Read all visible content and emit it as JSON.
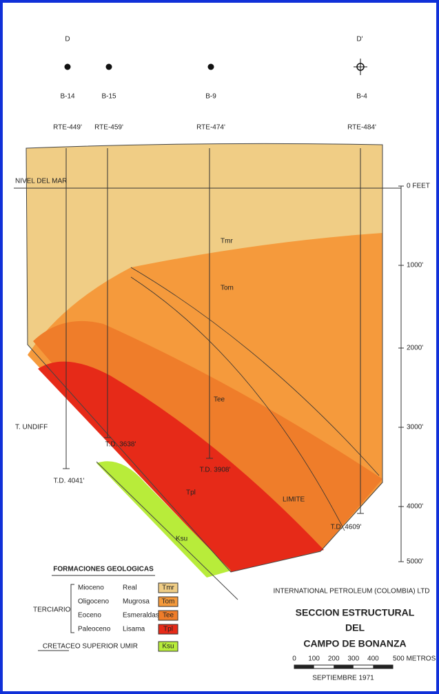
{
  "header": {
    "left_marker": "D",
    "right_marker": "D'"
  },
  "wells": [
    {
      "name": "B-14",
      "elevation": "RTE-449'",
      "total_depth": "T.D. 4041'"
    },
    {
      "name": "B-15",
      "elevation": "RTE-459'",
      "total_depth": "T.D. 3638'"
    },
    {
      "name": "B-9",
      "elevation": "RTE-474'",
      "total_depth": "T.D. 3908'"
    },
    {
      "name": "B-4",
      "elevation": "RTE-484'",
      "total_depth": "T.D. 4609'"
    }
  ],
  "sea_level": "NIVEL DEL MAR",
  "depth_scale": [
    "0 FEET",
    "1000'",
    "2000'",
    "3000'",
    "4000'",
    "5000'"
  ],
  "section_labels": [
    "Tmr",
    "Tom",
    "Tee",
    "Tpl",
    "Ksu",
    "T. UNDIFF",
    "LIMITE"
  ],
  "legend": {
    "title": "FORMACIONES GEOLOGICAS",
    "group": "TERCIARIO",
    "rows": [
      [
        "Mioceno",
        "Real",
        "Tmr"
      ],
      [
        "Oligoceno",
        "Mugrosa",
        "Tom"
      ],
      [
        "Eoceno",
        "Esmeraldas",
        "Tee"
      ],
      [
        "Paleoceno",
        "Lisama",
        "Tpl"
      ]
    ],
    "cretaceous": [
      "CRETACEO SUPERIOR UMIR",
      "Ksu"
    ]
  },
  "company": "INTERNATIONAL PETROLEUM (COLOMBIA) LTD",
  "title": [
    "SECCION ESTRUCTURAL",
    "DEL",
    "CAMPO DE BONANZA"
  ],
  "scale_bar": {
    "labels": [
      "0",
      "100",
      "200",
      "300",
      "400",
      "500 METROS"
    ],
    "date": "SEPTIEMBRE 1971"
  }
}
